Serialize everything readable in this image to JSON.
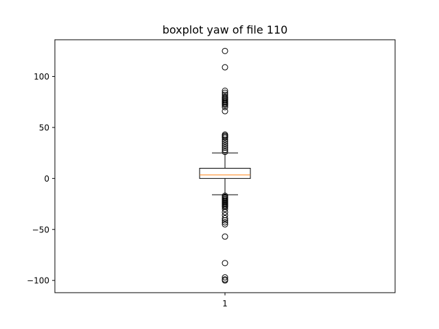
{
  "chart_data": {
    "type": "boxplot",
    "title": "boxplot yaw of file 110",
    "xlabel": "",
    "ylabel": "",
    "categories": [
      "1"
    ],
    "ylim": [
      -112,
      136
    ],
    "yticks": [
      -100,
      -50,
      0,
      50,
      100
    ],
    "ytick_labels": [
      "−100",
      "−50",
      "0",
      "50",
      "100"
    ],
    "grid": false,
    "series": [
      {
        "whisker_low": -16,
        "q1": 0,
        "median": 3.5,
        "q3": 10,
        "whisker_high": 25,
        "outliers": [
          125,
          109,
          86,
          84,
          82,
          80,
          79,
          78,
          77,
          76,
          75,
          74,
          73,
          72,
          70,
          66,
          43,
          42,
          41,
          40,
          38,
          36,
          34,
          32,
          30,
          28,
          26,
          -17,
          -18,
          -19,
          -20,
          -21,
          -22,
          -23,
          -24,
          -25,
          -26,
          -27,
          -28,
          -30,
          -33,
          -36,
          -39,
          -41,
          -43,
          -45,
          -57,
          -83,
          -97,
          -99,
          -100
        ]
      }
    ],
    "colors": {
      "box": "#000000",
      "median": "#ff7f0e",
      "outlier": "#000000"
    }
  }
}
